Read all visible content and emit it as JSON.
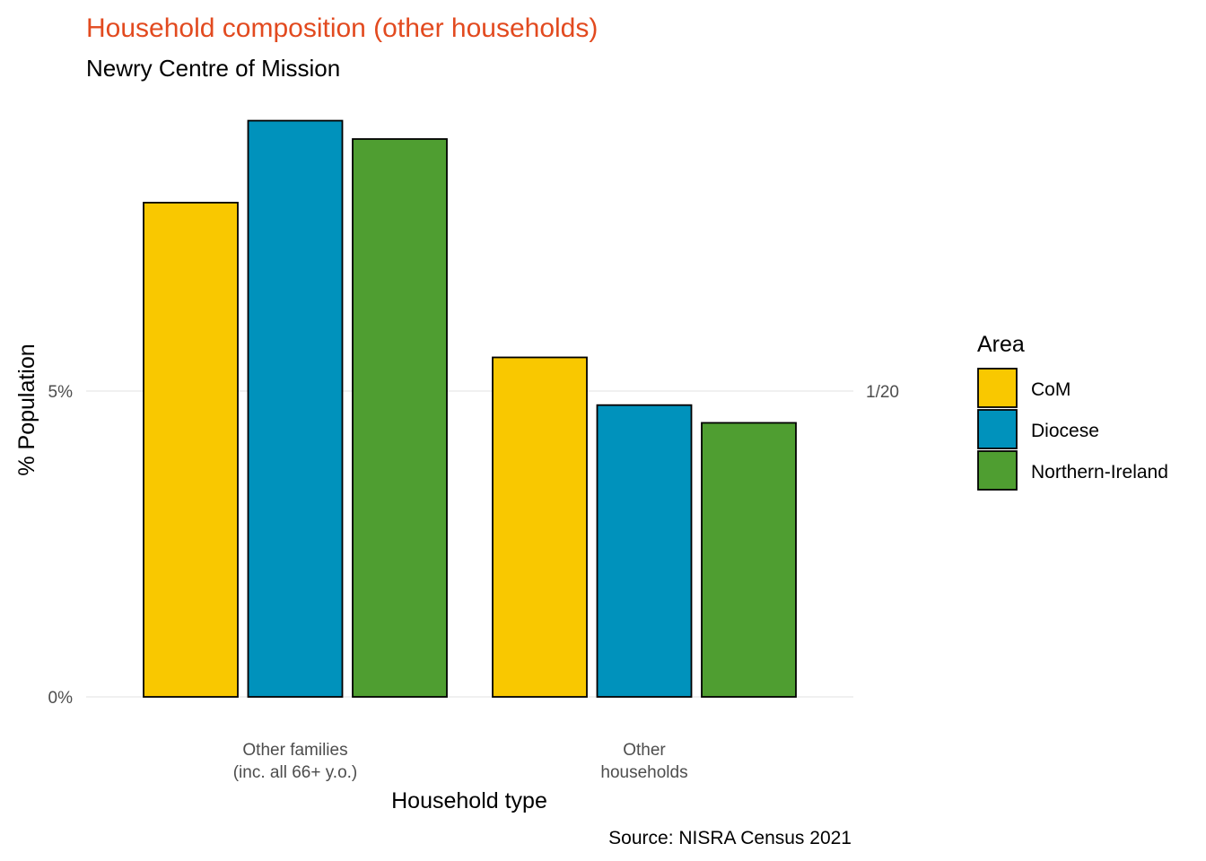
{
  "chart_data": {
    "type": "bar",
    "title": "Household composition (other households)",
    "subtitle": "Newry Centre of Mission",
    "xlabel": "Household type",
    "ylabel": "% Population",
    "caption": "Source: NISRA Census 2021",
    "categories": [
      [
        "Other families",
        "(inc. all 66+ y.o.)"
      ],
      [
        "Other",
        "households"
      ]
    ],
    "series": [
      {
        "name": "CoM",
        "color": "#F9C800",
        "values": [
          8.08,
          5.55
        ]
      },
      {
        "name": "Diocese",
        "color": "#0092BC",
        "values": [
          9.42,
          4.77
        ]
      },
      {
        "name": "Northern-Ireland",
        "color": "#4F9E31",
        "values": [
          9.12,
          4.48
        ]
      }
    ],
    "ylim": [
      0,
      9.9
    ],
    "yticks": [
      0,
      5
    ],
    "ytick_labels": [
      "0%",
      "5%"
    ],
    "secondary_ytick_labels": [
      "",
      "1/20"
    ],
    "legend_title": "Area",
    "legend_position": "right",
    "grid": true,
    "title_color": "#E24A1F"
  }
}
